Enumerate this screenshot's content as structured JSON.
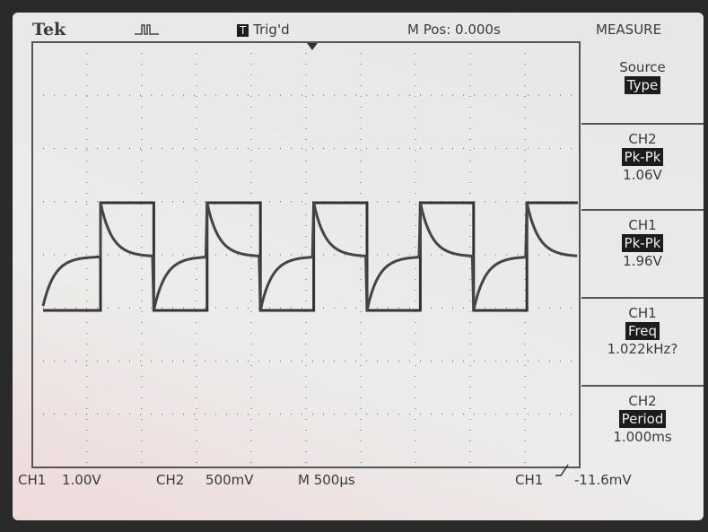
{
  "header": {
    "brand": "Tek",
    "trigger_icon": "T",
    "trigger_status": "Trig'd",
    "position": "M Pos: 0.000s",
    "menu": "MEASURE"
  },
  "measure": {
    "source": {
      "label": "Source",
      "value": "Type"
    },
    "items": [
      {
        "channel": "CH2",
        "type": "Pk-Pk",
        "value": "1.06V"
      },
      {
        "channel": "CH1",
        "type": "Pk-Pk",
        "value": "1.96V"
      },
      {
        "channel": "CH1",
        "type": "Freq",
        "value": "1.022kHz?"
      },
      {
        "channel": "CH2",
        "type": "Period",
        "value": "1.000ms"
      }
    ]
  },
  "footer": {
    "ch1_label": "CH1",
    "ch1_scale": "1.00V",
    "ch2_label": "CH2",
    "ch2_scale": "500mV",
    "timebase": "M 500µs",
    "trigger_source": "CH1",
    "trigger_level": "-11.6mV"
  }
}
